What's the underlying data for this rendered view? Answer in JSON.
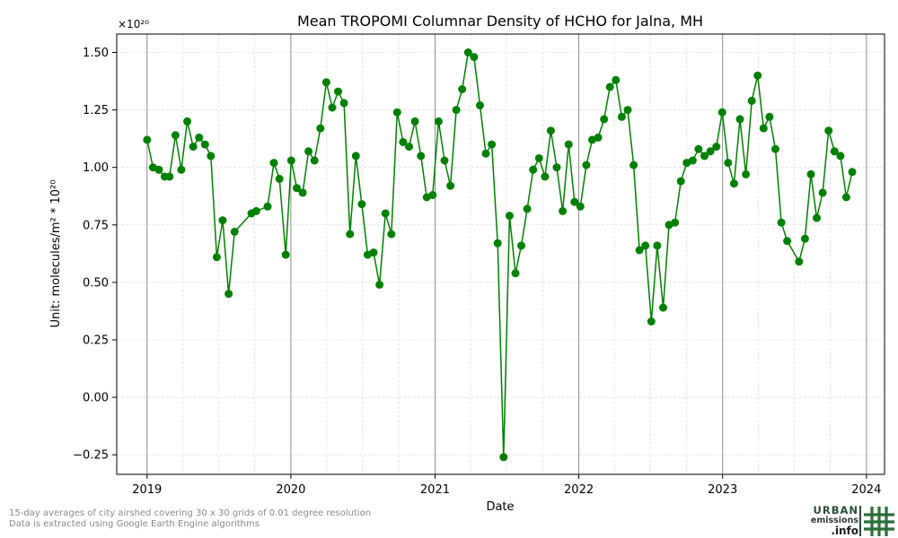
{
  "chart_data": {
    "type": "line",
    "title": "Mean TROPOMI Columnar Density of HCHO for Jalna, MH",
    "xlabel": "Date",
    "ylabel": "Unit: molecules/m² * 10²⁰",
    "y_offset_label": "×10²⁰",
    "x_tick_labels": [
      "2019",
      "2020",
      "2021",
      "2022",
      "2023",
      "2024"
    ],
    "y_tick_labels": [
      "−0.25",
      "0.00",
      "0.25",
      "0.50",
      "0.75",
      "1.00",
      "1.25",
      "1.50"
    ],
    "y_ticks": [
      -0.25,
      0,
      0.25,
      0.5,
      0.75,
      1.0,
      1.25,
      1.5
    ],
    "xlim": [
      "2018-10-16",
      "2024-02-16"
    ],
    "ylim": [
      -0.335,
      1.58
    ],
    "grid": true,
    "colors": {
      "series": "#008000",
      "year_lines": "#808080",
      "grid": "#d3d3d3"
    },
    "series": [
      {
        "points": [
          [
            "2019-01-01",
            1.12
          ],
          [
            "2019-01-16",
            1.0
          ],
          [
            "2019-01-31",
            0.99
          ],
          [
            "2019-02-15",
            0.96
          ],
          [
            "2019-02-27",
            0.96
          ],
          [
            "2019-03-14",
            1.14
          ],
          [
            "2019-03-29",
            0.99
          ],
          [
            "2019-04-13",
            1.2
          ],
          [
            "2019-04-28",
            1.09
          ],
          [
            "2019-05-13",
            1.13
          ],
          [
            "2019-05-28",
            1.1
          ],
          [
            "2019-06-12",
            1.05
          ],
          [
            "2019-06-27",
            0.61
          ],
          [
            "2019-07-12",
            0.77
          ],
          [
            "2019-07-27",
            0.45
          ],
          [
            "2019-08-11",
            0.72
          ],
          [
            "2019-09-23",
            0.8
          ],
          [
            "2019-10-05",
            0.81
          ],
          [
            "2019-11-03",
            0.83
          ],
          [
            "2019-11-19",
            1.02
          ],
          [
            "2019-12-03",
            0.95
          ],
          [
            "2019-12-19",
            0.62
          ],
          [
            "2020-01-02",
            1.03
          ],
          [
            "2020-01-16",
            0.91
          ],
          [
            "2020-01-31",
            0.89
          ],
          [
            "2020-02-15",
            1.07
          ],
          [
            "2020-03-01",
            1.03
          ],
          [
            "2020-03-16",
            1.17
          ],
          [
            "2020-03-31",
            1.37
          ],
          [
            "2020-04-15",
            1.26
          ],
          [
            "2020-04-30",
            1.33
          ],
          [
            "2020-05-15",
            1.28
          ],
          [
            "2020-05-30",
            0.71
          ],
          [
            "2020-06-14",
            1.05
          ],
          [
            "2020-06-29",
            0.84
          ],
          [
            "2020-07-14",
            0.62
          ],
          [
            "2020-07-29",
            0.63
          ],
          [
            "2020-08-13",
            0.49
          ],
          [
            "2020-08-28",
            0.8
          ],
          [
            "2020-09-12",
            0.71
          ],
          [
            "2020-09-27",
            1.24
          ],
          [
            "2020-10-12",
            1.11
          ],
          [
            "2020-10-27",
            1.09
          ],
          [
            "2020-11-11",
            1.2
          ],
          [
            "2020-11-26",
            1.05
          ],
          [
            "2020-12-11",
            0.87
          ],
          [
            "2020-12-26",
            0.88
          ],
          [
            "2021-01-10",
            1.2
          ],
          [
            "2021-01-25",
            1.03
          ],
          [
            "2021-02-09",
            0.92
          ],
          [
            "2021-02-24",
            1.25
          ],
          [
            "2021-03-11",
            1.34
          ],
          [
            "2021-03-26",
            1.5
          ],
          [
            "2021-04-10",
            1.48
          ],
          [
            "2021-04-25",
            1.27
          ],
          [
            "2021-05-10",
            1.06
          ],
          [
            "2021-05-25",
            1.1
          ],
          [
            "2021-06-09",
            0.67
          ],
          [
            "2021-06-24",
            -0.26
          ],
          [
            "2021-07-09",
            0.79
          ],
          [
            "2021-07-24",
            0.54
          ],
          [
            "2021-08-08",
            0.66
          ],
          [
            "2021-08-23",
            0.82
          ],
          [
            "2021-09-07",
            0.99
          ],
          [
            "2021-09-22",
            1.04
          ],
          [
            "2021-10-07",
            0.96
          ],
          [
            "2021-10-22",
            1.16
          ],
          [
            "2021-11-06",
            1.0
          ],
          [
            "2021-11-21",
            0.81
          ],
          [
            "2021-12-06",
            1.1
          ],
          [
            "2021-12-21",
            0.85
          ],
          [
            "2022-01-05",
            0.83
          ],
          [
            "2022-01-20",
            1.01
          ],
          [
            "2022-02-04",
            1.12
          ],
          [
            "2022-02-19",
            1.13
          ],
          [
            "2022-03-06",
            1.21
          ],
          [
            "2022-03-21",
            1.35
          ],
          [
            "2022-04-05",
            1.38
          ],
          [
            "2022-04-20",
            1.22
          ],
          [
            "2022-05-05",
            1.25
          ],
          [
            "2022-05-20",
            1.01
          ],
          [
            "2022-06-04",
            0.64
          ],
          [
            "2022-06-19",
            0.66
          ],
          [
            "2022-07-04",
            0.33
          ],
          [
            "2022-07-19",
            0.66
          ],
          [
            "2022-08-03",
            0.39
          ],
          [
            "2022-08-18",
            0.75
          ],
          [
            "2022-09-02",
            0.76
          ],
          [
            "2022-09-17",
            0.94
          ],
          [
            "2022-10-02",
            1.02
          ],
          [
            "2022-10-17",
            1.03
          ],
          [
            "2022-11-01",
            1.08
          ],
          [
            "2022-11-16",
            1.05
          ],
          [
            "2022-12-01",
            1.07
          ],
          [
            "2022-12-16",
            1.09
          ],
          [
            "2022-12-31",
            1.24
          ],
          [
            "2023-01-15",
            1.02
          ],
          [
            "2023-01-30",
            0.93
          ],
          [
            "2023-02-14",
            1.21
          ],
          [
            "2023-03-01",
            0.97
          ],
          [
            "2023-03-16",
            1.29
          ],
          [
            "2023-03-31",
            1.4
          ],
          [
            "2023-04-15",
            1.17
          ],
          [
            "2023-04-30",
            1.22
          ],
          [
            "2023-05-15",
            1.08
          ],
          [
            "2023-05-30",
            0.76
          ],
          [
            "2023-06-14",
            0.68
          ],
          [
            "2023-07-14",
            0.59
          ],
          [
            "2023-07-29",
            0.69
          ],
          [
            "2023-08-13",
            0.97
          ],
          [
            "2023-08-28",
            0.78
          ],
          [
            "2023-09-12",
            0.89
          ],
          [
            "2023-09-27",
            1.16
          ],
          [
            "2023-10-12",
            1.07
          ],
          [
            "2023-10-27",
            1.05
          ],
          [
            "2023-11-11",
            0.87
          ],
          [
            "2023-11-26",
            0.98
          ]
        ]
      }
    ]
  },
  "footnote": {
    "line1": "15-day averages of city airshed covering 30 x 30 grids of 0.01 degree resolution",
    "line2": "Data is extracted using Google Earth Engine algorithms"
  },
  "logo": {
    "word1": "URBAN",
    "word2": "emissions",
    "word3": ".info"
  }
}
